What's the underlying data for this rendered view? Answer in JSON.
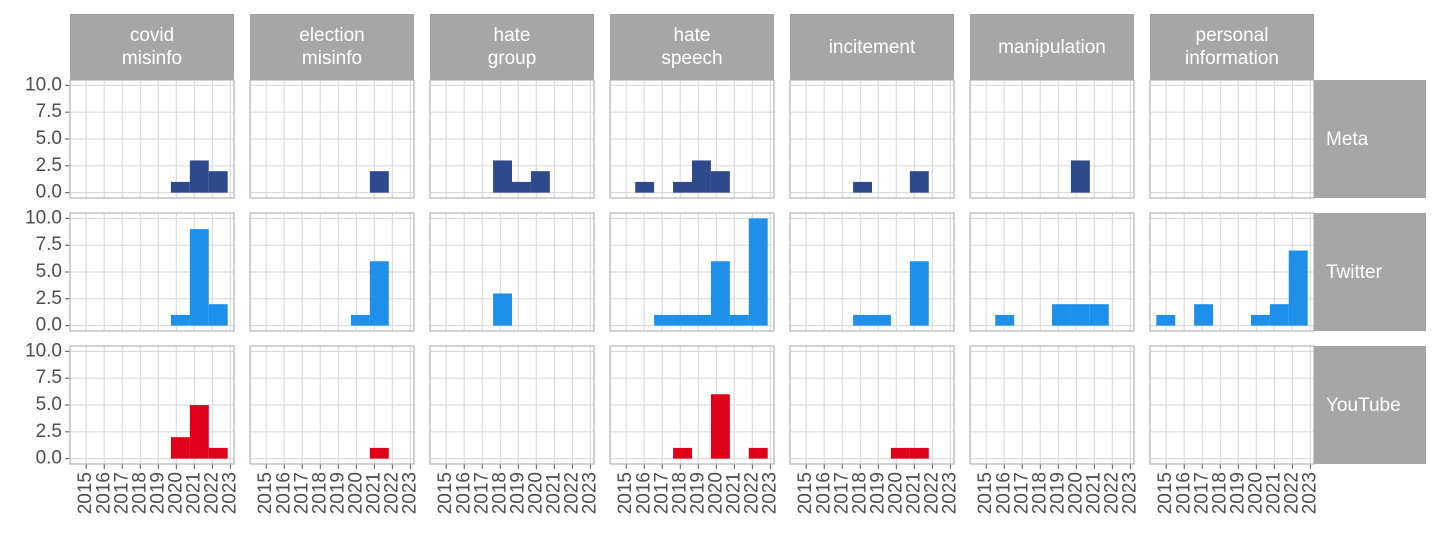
{
  "chart_data": {
    "type": "histogram",
    "columns": [
      "covid\nmisinfo",
      "election\nmisinfo",
      "hate\ngroup",
      "hate\nspeech",
      "incitement",
      "manipulation",
      "personal\ninformation"
    ],
    "bins": [
      2014.45,
      2015.5,
      2016.55,
      2017.6,
      2018.65,
      2019.7,
      2020.75,
      2021.8,
      2022.85
    ],
    "xlim": [
      2014.1,
      2023.2
    ],
    "xticks": [
      2015,
      2016,
      2017,
      2018,
      2019,
      2020,
      2021,
      2022,
      2023
    ],
    "ylim": [
      -0.5,
      10.5
    ],
    "yticks": [
      {
        "value": 0,
        "label": "0.0"
      },
      {
        "value": 2.5,
        "label": "2.5"
      },
      {
        "value": 5,
        "label": "5.0"
      },
      {
        "value": 7.5,
        "label": "7.5"
      },
      {
        "value": 10,
        "label": "10.0"
      }
    ],
    "grid": true,
    "series": [
      {
        "name": "Meta",
        "color": "#2e4a8c",
        "values": [
          [
            0,
            0,
            0,
            0,
            0,
            1,
            3,
            2
          ],
          [
            0,
            0,
            0,
            0,
            0,
            0,
            2,
            0
          ],
          [
            0,
            0,
            0,
            3,
            1,
            2,
            0,
            0
          ],
          [
            0,
            1,
            0,
            1,
            3,
            2,
            0,
            0
          ],
          [
            0,
            0,
            0,
            1,
            0,
            0,
            2,
            0
          ],
          [
            0,
            0,
            0,
            0,
            0,
            3,
            0,
            0
          ],
          [
            0,
            0,
            0,
            0,
            0,
            0,
            0,
            0
          ]
        ]
      },
      {
        "name": "Twitter",
        "color": "#1e90ea",
        "values": [
          [
            0,
            0,
            0,
            0,
            0,
            1,
            9,
            2
          ],
          [
            0,
            0,
            0,
            0,
            0,
            1,
            6,
            0
          ],
          [
            0,
            0,
            0,
            3,
            0,
            0,
            0,
            0
          ],
          [
            0,
            0,
            1,
            1,
            1,
            6,
            1,
            10
          ],
          [
            0,
            0,
            0,
            1,
            1,
            0,
            6,
            0
          ],
          [
            0,
            1,
            0,
            0,
            2,
            2,
            2,
            0
          ],
          [
            1,
            0,
            2,
            0,
            0,
            1,
            2,
            7
          ]
        ]
      },
      {
        "name": "YouTube",
        "color": "#e0001a",
        "values": [
          [
            0,
            0,
            0,
            0,
            0,
            2,
            5,
            1
          ],
          [
            0,
            0,
            0,
            0,
            0,
            0,
            1,
            0
          ],
          [
            0,
            0,
            0,
            0,
            0,
            0,
            0,
            0
          ],
          [
            0,
            0,
            0,
            1,
            0,
            6,
            0,
            1
          ],
          [
            0,
            0,
            0,
            0,
            0,
            1,
            1,
            0
          ],
          [
            0,
            0,
            0,
            0,
            0,
            0,
            0,
            0
          ],
          [
            0,
            0,
            0,
            0,
            0,
            0,
            0,
            0
          ]
        ]
      }
    ]
  }
}
